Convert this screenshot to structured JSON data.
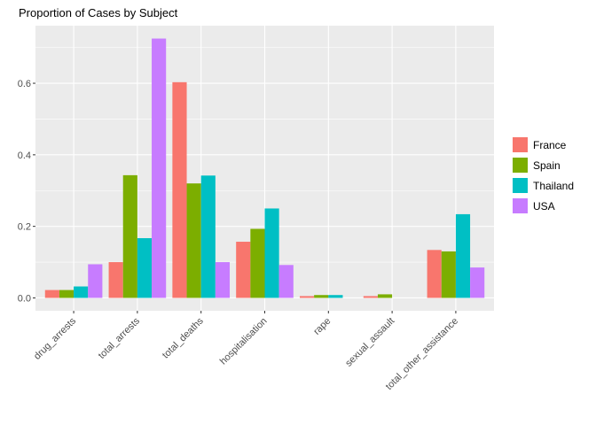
{
  "chart_data": {
    "type": "bar",
    "title": "Proportion of Cases by Subject",
    "xlabel": "",
    "ylabel": "",
    "categories": [
      "drug_arrests",
      "total_arrests",
      "total_deaths",
      "hospitalisation",
      "rape",
      "sexual_assault",
      "total_other_assistance"
    ],
    "series": [
      {
        "name": "France",
        "color": "#F8766D",
        "values": [
          0.022,
          0.1,
          0.603,
          0.157,
          0.005,
          0.005,
          0.134
        ]
      },
      {
        "name": "Spain",
        "color": "#7CAE00",
        "values": [
          0.022,
          0.343,
          0.32,
          0.193,
          0.008,
          0.01,
          0.13
        ]
      },
      {
        "name": "Thailand",
        "color": "#00BFC4",
        "values": [
          0.032,
          0.167,
          0.342,
          0.25,
          0.008,
          0.0,
          0.234
        ]
      },
      {
        "name": "USA",
        "color": "#C77CFF",
        "values": [
          0.094,
          0.725,
          0.1,
          0.092,
          0.0,
          0.0,
          0.085
        ]
      }
    ],
    "yticks": [
      0.0,
      0.2,
      0.4,
      0.6
    ],
    "ytick_labels": [
      "0.0",
      "0.2",
      "0.4",
      "0.6"
    ],
    "ylim": [
      -0.036,
      0.761
    ],
    "grid": true,
    "legend_position": "right",
    "panel_background": "#EBEBEB"
  }
}
